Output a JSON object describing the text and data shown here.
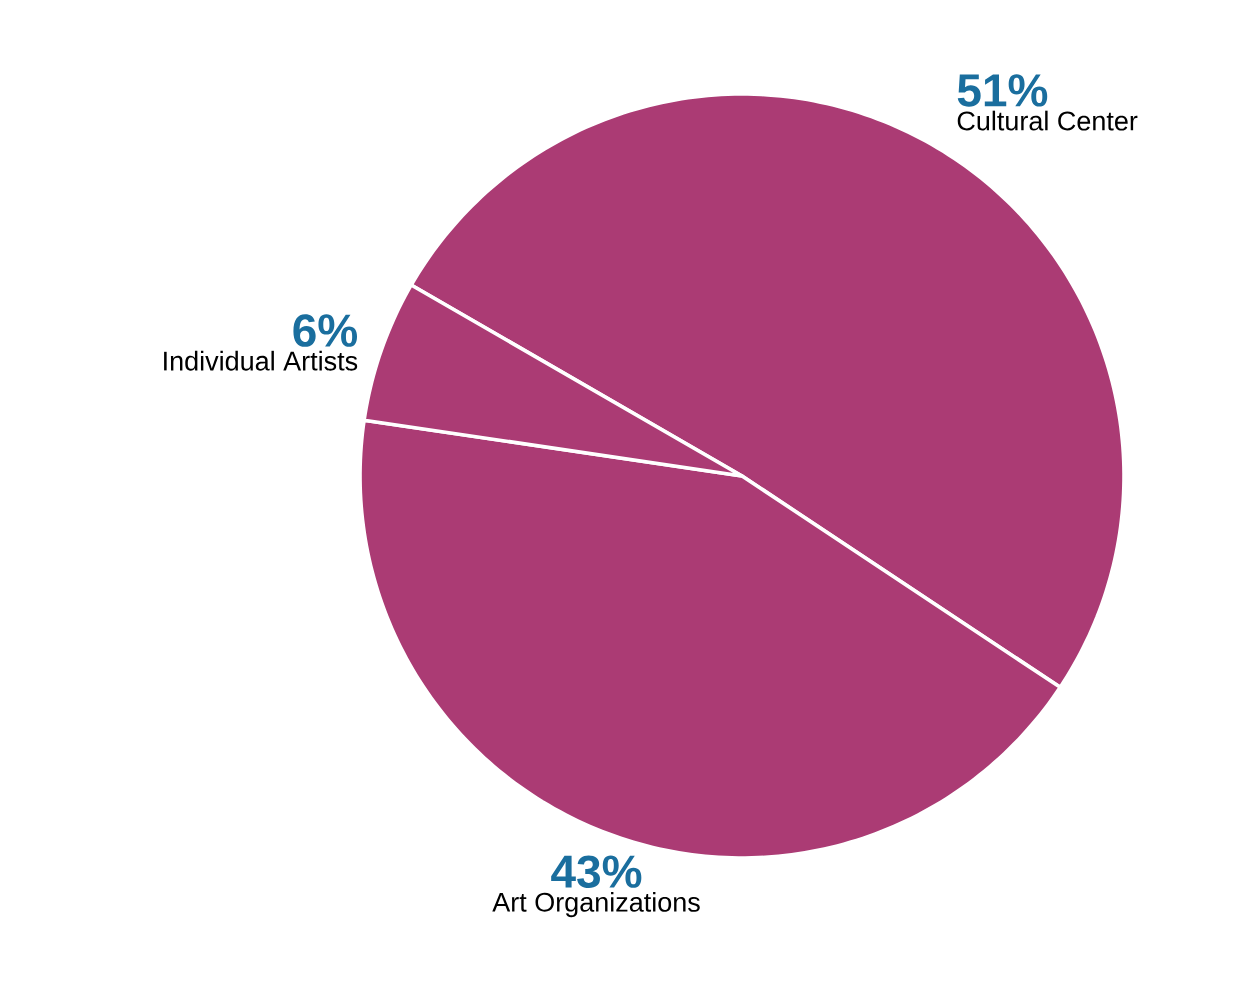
{
  "chart_data": {
    "type": "pie",
    "categories": [
      "Cultural Center",
      "Art Organizations",
      "Individual Artists"
    ],
    "values": [
      51,
      43,
      6
    ],
    "value_labels": [
      "51%",
      "43%",
      "6%"
    ],
    "colors": [
      "#ab3b74",
      "#ab3b74",
      "#ab3b74"
    ]
  }
}
